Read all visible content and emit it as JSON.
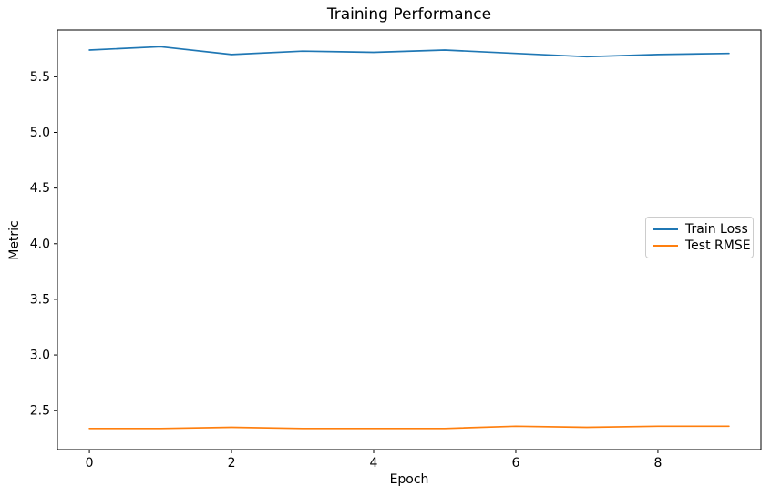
{
  "chart_data": {
    "type": "line",
    "title": "Training Performance",
    "xlabel": "Epoch",
    "ylabel": "Metric",
    "x": [
      0,
      1,
      2,
      3,
      4,
      5,
      6,
      7,
      8,
      9
    ],
    "series": [
      {
        "name": "Train Loss",
        "color": "#1f77b4",
        "values": [
          5.74,
          5.77,
          5.7,
          5.73,
          5.72,
          5.74,
          5.71,
          5.68,
          5.7,
          5.71
        ]
      },
      {
        "name": "Test RMSE",
        "color": "#ff7f0e",
        "values": [
          2.34,
          2.34,
          2.35,
          2.34,
          2.34,
          2.34,
          2.36,
          2.35,
          2.36,
          2.36
        ]
      }
    ],
    "xlim": [
      -0.45,
      9.45
    ],
    "ylim": [
      2.15,
      5.92
    ],
    "xticks": {
      "values": [
        0,
        2,
        4,
        6,
        8
      ],
      "labels": [
        "0",
        "2",
        "4",
        "6",
        "8"
      ]
    },
    "yticks": {
      "values": [
        2.5,
        3.0,
        3.5,
        4.0,
        4.5,
        5.0,
        5.5
      ],
      "labels": [
        "2.5",
        "3.0",
        "3.5",
        "4.0",
        "4.5",
        "5.0",
        "5.5"
      ]
    },
    "grid": false,
    "legend_position": "center right",
    "axis_color": "#000000",
    "background_color": "#ffffff"
  }
}
